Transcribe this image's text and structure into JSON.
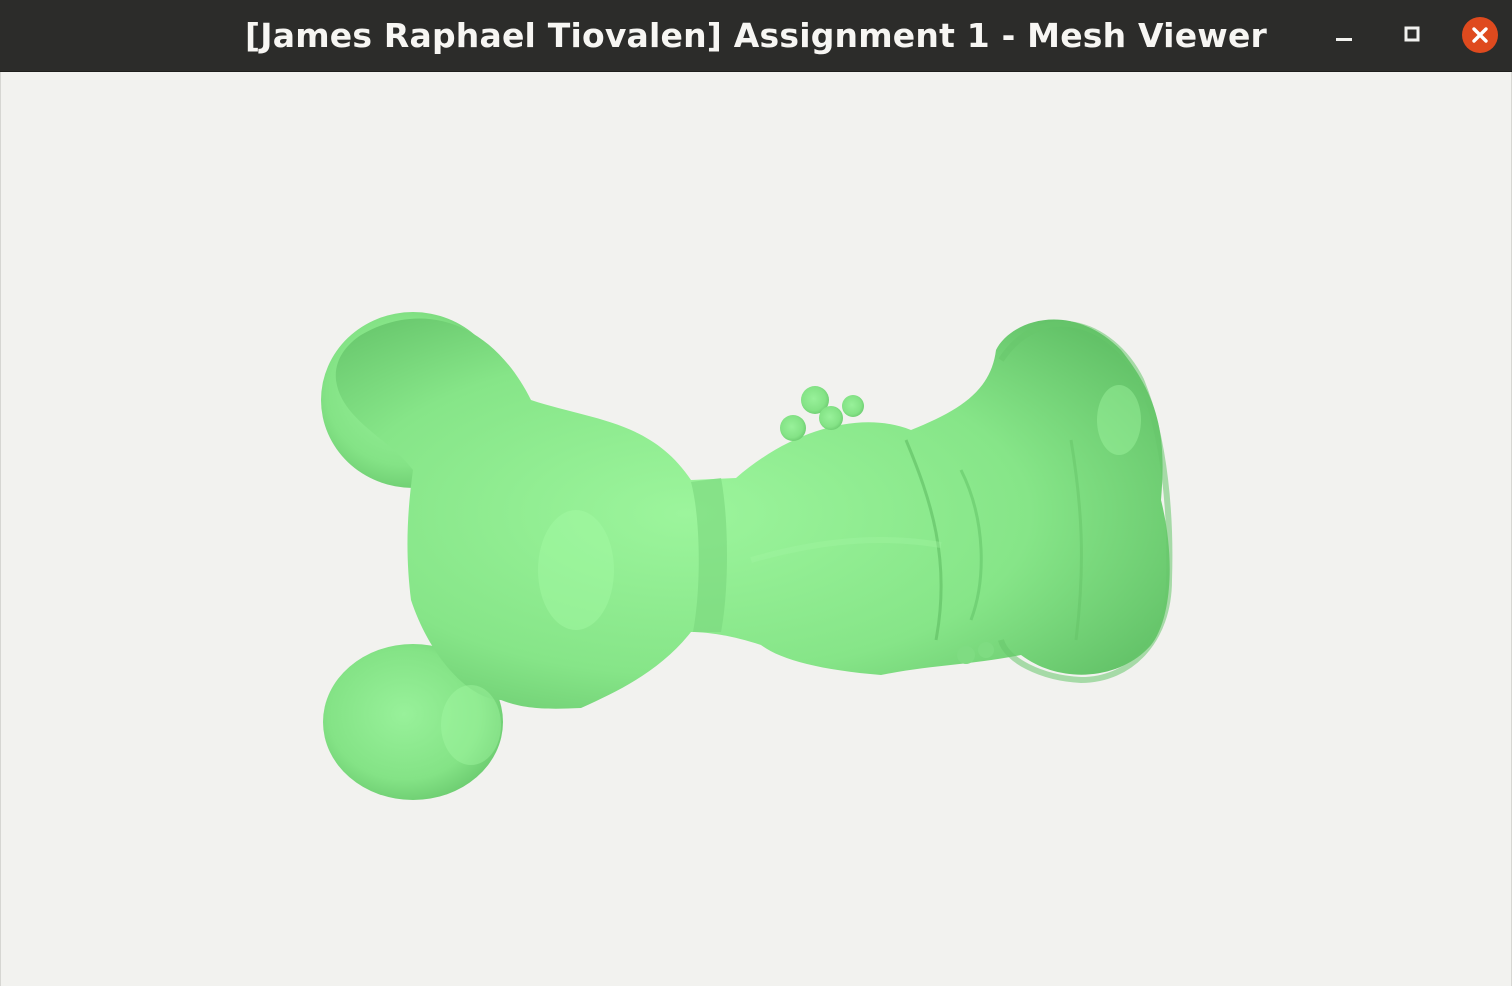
{
  "window": {
    "title": "[James Raphael Tiovalen] Assignment 1 - Mesh Viewer",
    "controls": {
      "minimize_icon": "minimize-icon",
      "maximize_icon": "maximize-icon",
      "close_icon": "close-icon"
    }
  },
  "viewport": {
    "background_color": "#f2f2ef",
    "mesh_color": "#86e588",
    "mesh_shadow_color": "#57b65d",
    "mesh_highlight_color": "#9cf59c"
  }
}
